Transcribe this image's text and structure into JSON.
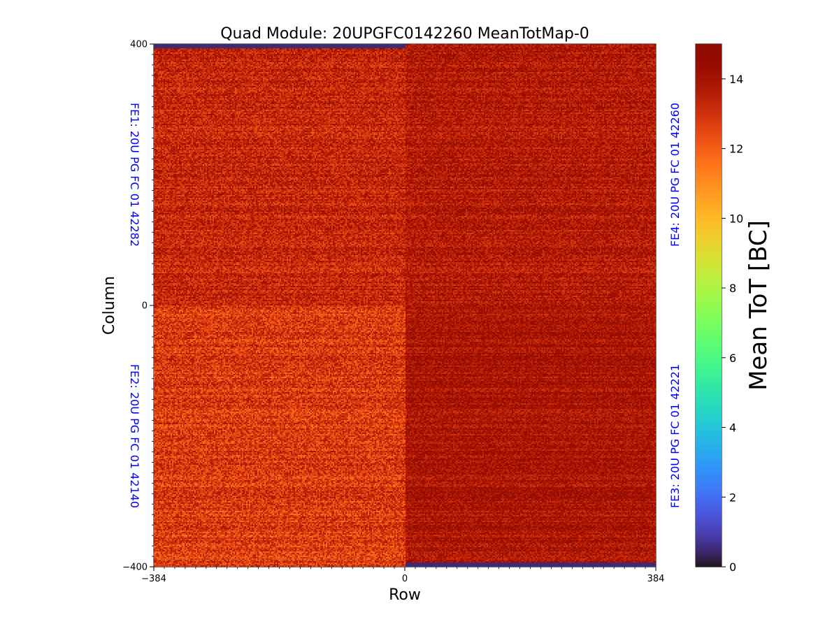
{
  "chart_data": {
    "type": "heatmap",
    "title": "Quad Module: 20UPGFC0142260 MeanTotMap-0",
    "xlabel": "Row",
    "ylabel": "Column",
    "xlim": [
      -384,
      384
    ],
    "ylim": [
      -400,
      400
    ],
    "x_ticks": [
      {
        "value": -384,
        "label": "−384"
      },
      {
        "value": 0,
        "label": "0"
      },
      {
        "value": 384,
        "label": "384"
      }
    ],
    "y_ticks": [
      {
        "value": 400,
        "label": "400"
      },
      {
        "value": 0,
        "label": "0"
      },
      {
        "value": -400,
        "label": "−400"
      }
    ],
    "colorbar": {
      "label": "Mean ToT [BC]",
      "colormap": "turbo",
      "range": [
        0,
        15
      ],
      "ticks": [
        {
          "value": 0,
          "label": "0"
        },
        {
          "value": 2,
          "label": "2"
        },
        {
          "value": 4,
          "label": "4"
        },
        {
          "value": 6,
          "label": "6"
        },
        {
          "value": 8,
          "label": "8"
        },
        {
          "value": 10,
          "label": "10"
        },
        {
          "value": 12,
          "label": "12"
        },
        {
          "value": 14,
          "label": "14"
        }
      ]
    },
    "quadrants": [
      {
        "label": "FE1: 20U PG FC 01 42282",
        "x_range": [
          -384,
          0
        ],
        "y_range": [
          0,
          400
        ],
        "mean_value": 13.3,
        "spread": 0.9,
        "dead_rows_y": [
          394,
          400
        ]
      },
      {
        "label": "FE4: 20U PG FC 01 42260",
        "x_range": [
          0,
          384
        ],
        "y_range": [
          0,
          400
        ],
        "mean_value": 13.7,
        "spread": 0.8,
        "dead_rows_y": []
      },
      {
        "label": "FE2: 20U PG FC 01 42140",
        "x_range": [
          -384,
          0
        ],
        "y_range": [
          -400,
          0
        ],
        "mean_value": 12.8,
        "spread": 1.0,
        "dead_rows_y": []
      },
      {
        "label": "FE3: 20U PG FC 01 42221",
        "x_range": [
          0,
          384
        ],
        "y_range": [
          -400,
          0
        ],
        "mean_value": 13.9,
        "spread": 0.7,
        "dead_rows_y": [
          -400,
          -393
        ]
      }
    ],
    "dead_value": 0.5,
    "fe_label_color": "#0000ff"
  }
}
